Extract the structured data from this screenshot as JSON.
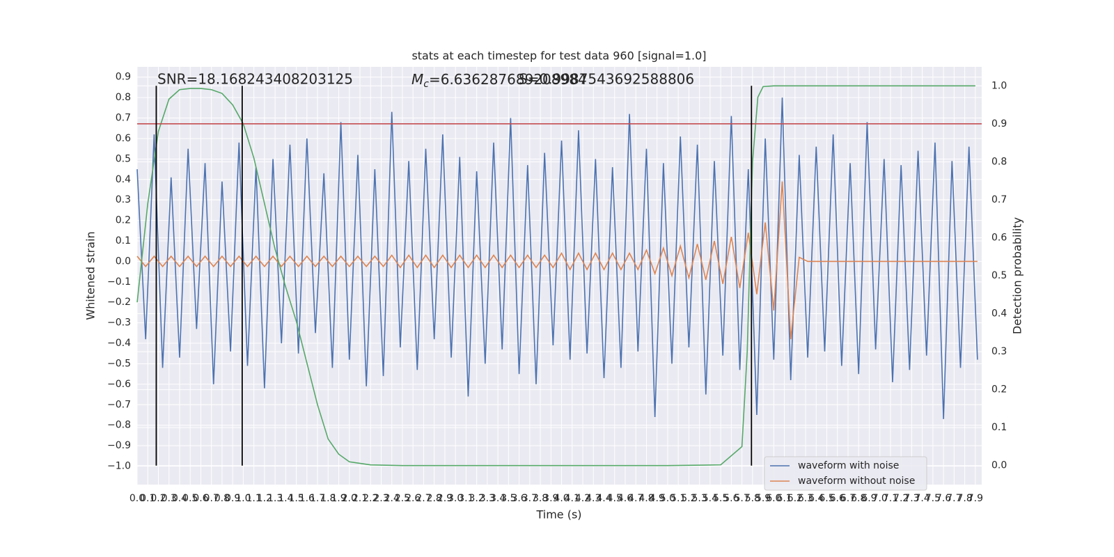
{
  "chart_data": {
    "type": "line",
    "title": "stats at each timestep for test data 960 [signal=1.0]",
    "xlabel": "Time (s)",
    "ylabel": "Whitened strain",
    "y2label": "Detection probability",
    "annotations": [
      {
        "text": "SNR=18.168243408203125"
      },
      {
        "symbol": "M",
        "subscript": "c",
        "text": "=6.636287689208984"
      },
      {
        "text": "S=0.9987543692588806"
      }
    ],
    "x": [
      0,
      0.08,
      0.16,
      0.24,
      0.32,
      0.4,
      0.48,
      0.56,
      0.64,
      0.72,
      0.8,
      0.88,
      0.96,
      1.04,
      1.12,
      1.2,
      1.28,
      1.36,
      1.44,
      1.52,
      1.6,
      1.68,
      1.76,
      1.84,
      1.92,
      2,
      2.08,
      2.16,
      2.24,
      2.32,
      2.4,
      2.48,
      2.56,
      2.64,
      2.72,
      2.8,
      2.88,
      2.96,
      3.04,
      3.12,
      3.2,
      3.28,
      3.36,
      3.44,
      3.52,
      3.6,
      3.68,
      3.76,
      3.84,
      3.92,
      4,
      4.08,
      4.16,
      4.24,
      4.32,
      4.4,
      4.48,
      4.56,
      4.64,
      4.72,
      4.8,
      4.88,
      4.96,
      5.04,
      5.12,
      5.2,
      5.28,
      5.36,
      5.44,
      5.52,
      5.6,
      5.68,
      5.76,
      5.84,
      5.92,
      6,
      6.08,
      6.16,
      6.24,
      6.32,
      6.4,
      6.48,
      6.56,
      6.64,
      6.72,
      6.8,
      6.88,
      6.96,
      7.04,
      7.12,
      7.2,
      7.28,
      7.36,
      7.44,
      7.52,
      7.6,
      7.68,
      7.76,
      7.84,
      7.92
    ],
    "series": [
      {
        "name": "waveform with noise",
        "color": "#4c72b0",
        "values": [
          0.45,
          -0.38,
          0.62,
          -0.52,
          0.41,
          -0.47,
          0.55,
          -0.33,
          0.48,
          -0.6,
          0.39,
          -0.44,
          0.58,
          -0.51,
          0.46,
          -0.62,
          0.5,
          -0.4,
          0.57,
          -0.45,
          0.6,
          -0.35,
          0.43,
          -0.52,
          0.68,
          -0.48,
          0.52,
          -0.61,
          0.45,
          -0.56,
          0.73,
          -0.42,
          0.49,
          -0.53,
          0.55,
          -0.38,
          0.62,
          -0.47,
          0.51,
          -0.66,
          0.44,
          -0.5,
          0.58,
          -0.43,
          0.7,
          -0.55,
          0.47,
          -0.6,
          0.53,
          -0.41,
          0.59,
          -0.48,
          0.64,
          -0.45,
          0.5,
          -0.57,
          0.46,
          -0.52,
          0.72,
          -0.44,
          0.55,
          -0.76,
          0.48,
          -0.5,
          0.61,
          -0.42,
          0.57,
          -0.65,
          0.49,
          -0.46,
          0.71,
          -0.53,
          0.45,
          -0.75,
          0.6,
          -0.48,
          0.8,
          -0.58,
          0.52,
          -0.47,
          0.56,
          -0.44,
          0.62,
          -0.51,
          0.48,
          -0.55,
          0.68,
          -0.43,
          0.5,
          -0.59,
          0.47,
          -0.53,
          0.54,
          -0.46,
          0.58,
          -0.77,
          0.49,
          -0.52,
          0.56,
          -0.48
        ]
      },
      {
        "name": "waveform without noise",
        "color": "#dd8452",
        "values": [
          0.025,
          -0.025,
          0.025,
          -0.025,
          0.025,
          -0.025,
          0.025,
          -0.025,
          0.025,
          -0.025,
          0.025,
          -0.025,
          0.025,
          -0.025,
          0.025,
          -0.025,
          0.025,
          -0.025,
          0.025,
          -0.025,
          0.025,
          -0.025,
          0.025,
          -0.025,
          0.025,
          -0.025,
          0.025,
          -0.025,
          0.025,
          -0.025,
          0.03,
          -0.03,
          0.03,
          -0.03,
          0.03,
          -0.03,
          0.03,
          -0.03,
          0.03,
          -0.03,
          0.03,
          -0.03,
          0.03,
          -0.03,
          0.03,
          -0.03,
          0.03,
          -0.03,
          0.03,
          -0.03,
          0.04,
          -0.04,
          0.04,
          -0.04,
          0.04,
          -0.04,
          0.04,
          -0.04,
          0.04,
          -0.04,
          0.055,
          -0.06,
          0.065,
          -0.07,
          0.075,
          -0.08,
          0.085,
          -0.09,
          0.1,
          -0.11,
          0.12,
          -0.13,
          0.14,
          -0.16,
          0.19,
          -0.24,
          0.39,
          -0.38,
          0.02,
          0,
          0,
          0,
          0,
          0,
          0,
          0,
          0,
          0,
          0,
          0,
          0,
          0,
          0,
          0,
          0,
          0,
          0,
          0,
          0,
          0
        ]
      },
      {
        "color": "#55a868",
        "axis": "y2",
        "x": [
          0,
          0.1,
          0.2,
          0.3,
          0.4,
          0.5,
          0.6,
          0.7,
          0.8,
          0.9,
          1,
          1.1,
          1.2,
          1.3,
          1.4,
          1.5,
          1.6,
          1.7,
          1.8,
          1.9,
          2,
          2.2,
          2.5,
          3,
          4,
          5,
          5.5,
          5.7,
          5.75,
          5.8,
          5.85,
          5.9,
          6,
          7,
          7.9
        ],
        "values": [
          0.43,
          0.69,
          0.88,
          0.965,
          0.99,
          0.993,
          0.993,
          0.99,
          0.98,
          0.95,
          0.9,
          0.81,
          0.69,
          0.57,
          0.47,
          0.38,
          0.27,
          0.16,
          0.07,
          0.03,
          0.01,
          0.002,
          0,
          0,
          0,
          0,
          0.002,
          0.05,
          0.3,
          0.8,
          0.97,
          0.998,
          1,
          1,
          1
        ]
      }
    ],
    "vlines": [
      0.18,
      0.99,
      5.79
    ],
    "vline_color": "#000000",
    "threshold": 0.9,
    "threshold_color": "#c44e52",
    "xlim": [
      0,
      7.96
    ],
    "ylim": [
      -1.09,
      0.95
    ],
    "y2lim": [
      -0.05,
      1.05
    ],
    "xticks": [
      {
        "value": 0,
        "label": "0.0"
      },
      0.1,
      0.2,
      0.3,
      0.4,
      0.5,
      0.6,
      0.7,
      0.8,
      0.9,
      {
        "value": 1,
        "label": "1.0"
      },
      1.1,
      1.2,
      1.3,
      1.4,
      1.5,
      1.6,
      1.7,
      1.8,
      1.9,
      {
        "value": 2,
        "label": "2.0"
      },
      2.1,
      2.2,
      2.3,
      2.4,
      2.5,
      2.6,
      2.7,
      2.8,
      2.9,
      {
        "value": 3,
        "label": "3.0"
      },
      3.1,
      3.2,
      3.3,
      3.4,
      3.5,
      3.6,
      3.7,
      3.8,
      3.9,
      {
        "value": 4,
        "label": "4.0"
      },
      4.1,
      4.2,
      4.3,
      4.4,
      4.5,
      4.6,
      4.7,
      4.8,
      4.9,
      {
        "value": 5,
        "label": "5.0"
      },
      5.1,
      5.2,
      5.3,
      5.4,
      5.5,
      5.6,
      5.7,
      5.8,
      5.9,
      {
        "value": 6,
        "label": "6.0"
      },
      6.1,
      6.2,
      6.3,
      6.4,
      6.5,
      6.6,
      6.7,
      6.8,
      6.9,
      {
        "value": 7,
        "label": "7.0"
      },
      7.1,
      7.2,
      7.3,
      7.4,
      7.5,
      7.6,
      7.7,
      7.8,
      7.9
    ],
    "yticks": [
      0.9,
      0.8,
      0.7,
      0.6,
      0.5,
      0.4,
      0.3,
      0.2,
      0.1,
      {
        "value": 0,
        "label": "0.0"
      },
      {
        "value": -0.1,
        "label": "−0.1"
      },
      {
        "value": -0.2,
        "label": "−0.2"
      },
      {
        "value": -0.3,
        "label": "−0.3"
      },
      {
        "value": -0.4,
        "label": "−0.4"
      },
      {
        "value": -0.5,
        "label": "−0.5"
      },
      {
        "value": -0.6,
        "label": "−0.6"
      },
      {
        "value": -0.7,
        "label": "−0.7"
      },
      {
        "value": -0.8,
        "label": "−0.8"
      },
      {
        "value": -0.9,
        "label": "−0.9"
      },
      {
        "value": -1,
        "label": "−1.0"
      }
    ],
    "y2ticks": [
      {
        "value": 0,
        "label": "0.0"
      },
      0.1,
      0.2,
      0.3,
      0.4,
      0.5,
      0.6,
      0.7,
      0.8,
      0.9,
      {
        "value": 1,
        "label": "1.0"
      }
    ],
    "grid": true,
    "legend": "lower right"
  }
}
